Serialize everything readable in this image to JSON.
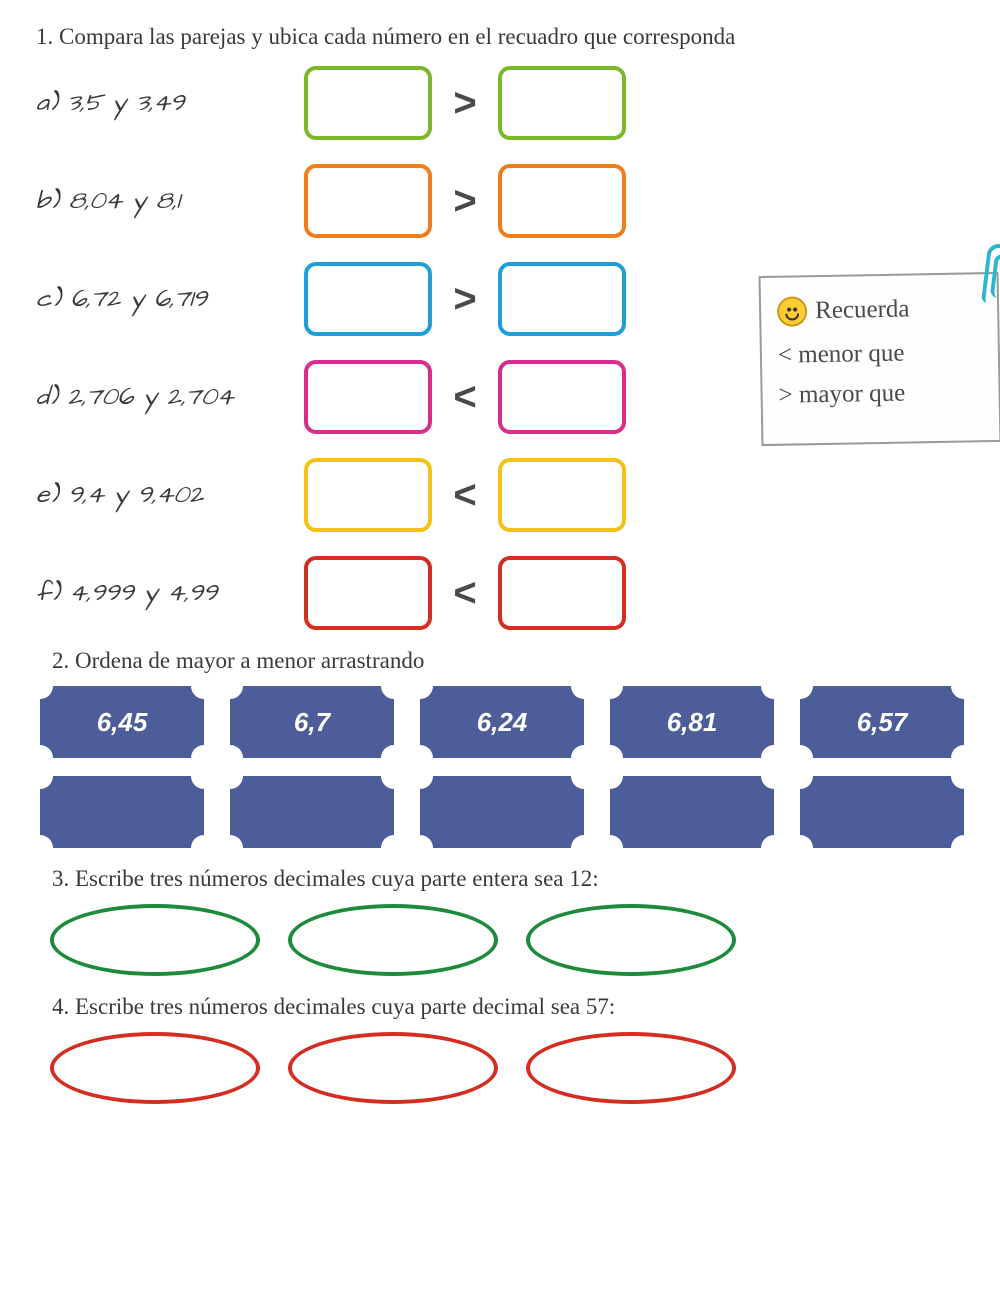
{
  "q1": {
    "instruction": "1. Compara las parejas y ubica cada número en el recuadro que corresponda",
    "rows": [
      {
        "label": "a) 3,5 y 3,49",
        "op": ">",
        "color": "#7cb92a",
        "border_width": 4
      },
      {
        "label": "b) 8,04 y 8,1",
        "op": ">",
        "color": "#ef7e1a",
        "border_width": 4
      },
      {
        "label": "c) 6,72 y 6,719",
        "op": ">",
        "color": "#1f9fd8",
        "border_width": 4
      },
      {
        "label": "d) 2,706 y 2,704",
        "op": "<",
        "color": "#d82d8b",
        "border_width": 4
      },
      {
        "label": "e) 9,4 y 9,402",
        "op": "<",
        "color": "#f2c316",
        "border_width": 4
      },
      {
        "label": "f) 4,999 y 4,99",
        "op": "<",
        "color": "#d42d22",
        "border_width": 4
      }
    ],
    "note": {
      "title": "Recuerda",
      "line1": "< menor que",
      "line2": "> mayor que",
      "bg": "#fefefe",
      "border": "#9a9a9a",
      "clip_color": "#2fb4cf",
      "smiley_color": "#ffcc33"
    }
  },
  "q2": {
    "instruction": "2. Ordena de mayor a menor arrastrando",
    "ticket_color": "#4c5d99",
    "ticket_text_color": "#ffffff",
    "values": [
      "6,45",
      "6,7",
      "6,24",
      "6,81",
      "6,57"
    ],
    "slots": 5
  },
  "q3": {
    "instruction": "3. Escribe tres números decimales cuya parte entera sea 12:",
    "count": 3,
    "border_color": "#1e8a3b",
    "border_width": 4
  },
  "q4": {
    "instruction": "4. Escribe tres números decimales cuya parte decimal sea 57:",
    "count": 3,
    "border_color": "#d42d22",
    "border_width": 4
  }
}
